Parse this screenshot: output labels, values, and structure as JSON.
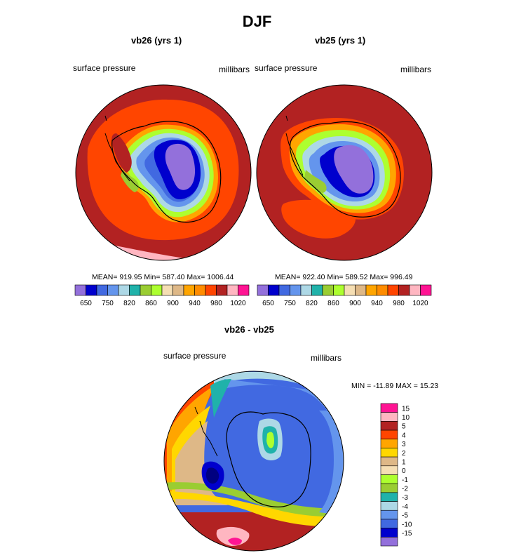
{
  "main_title": "DJF",
  "panel_left": {
    "title": "vb26 (yrs 1)",
    "variable": "surface pressure",
    "units": "millibars",
    "stats": "MEAN= 919.95  Min= 587.40  Max= 1006.44"
  },
  "panel_right": {
    "title": "vb25 (yrs 1)",
    "variable": "surface pressure",
    "units": "millibars",
    "stats": "MEAN= 922.40  Min= 589.52  Max= 996.49"
  },
  "panel_diff": {
    "title": "vb26 - vb25",
    "variable": "surface pressure",
    "units": "millibars",
    "stats": "MIN = -11.89 MAX =  15.23"
  },
  "abs_colorbar": {
    "colors": [
      "#9370db",
      "#0000cd",
      "#4169e1",
      "#6495ed",
      "#add8e6",
      "#20b2aa",
      "#9acd32",
      "#adff2f",
      "#f5deb3",
      "#deb887",
      "#ffa500",
      "#ff8c00",
      "#ff4500",
      "#b22222",
      "#ffb6c1",
      "#ff1493"
    ],
    "tick_labels": [
      "650",
      "750",
      "820",
      "860",
      "900",
      "940",
      "980",
      "1020"
    ]
  },
  "diff_colorbar": {
    "colors": [
      "#9370db",
      "#0000cd",
      "#4169e1",
      "#6495ed",
      "#add8e6",
      "#20b2aa",
      "#9acd32",
      "#adff2f",
      "#f5deb3",
      "#deb887",
      "#ffd700",
      "#ffa500",
      "#ff4500",
      "#b22222",
      "#ffb6c1",
      "#ff1493"
    ],
    "tick_labels": [
      "15",
      "10",
      "5",
      "4",
      "3",
      "2",
      "1",
      "0",
      "-1",
      "-2",
      "-3",
      "-4",
      "-5",
      "-10",
      "-15"
    ]
  }
}
